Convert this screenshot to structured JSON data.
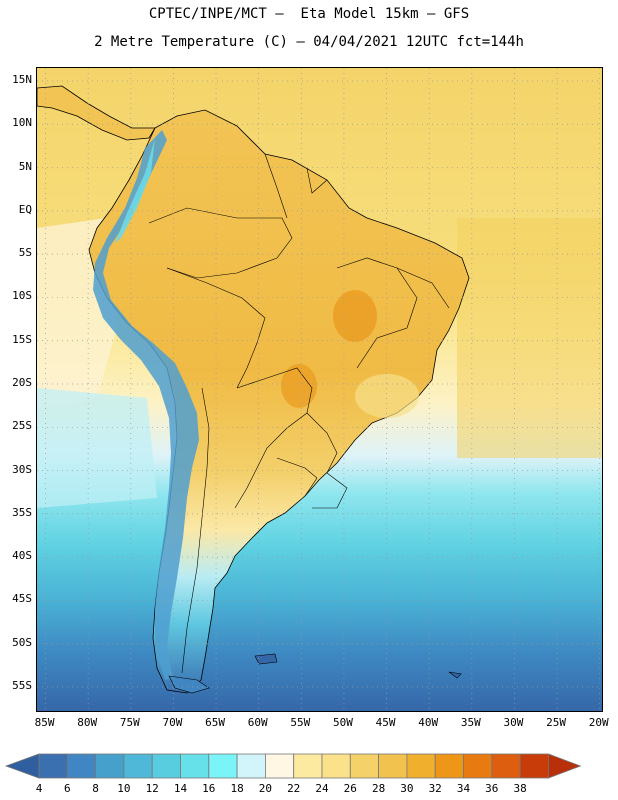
{
  "title": {
    "line1": "CPTEC/INPE/MCT –  Eta Model 15km – GFS",
    "line2": "2 Metre Temperature (C) – 04/04/2021 12UTC fct=144h"
  },
  "map": {
    "lat_labels": [
      "15N",
      "10N",
      "5N",
      "EQ",
      "5S",
      "10S",
      "15S",
      "20S",
      "25S",
      "30S",
      "35S",
      "40S",
      "45S",
      "50S",
      "55S"
    ],
    "lon_labels": [
      "85W",
      "80W",
      "75W",
      "70W",
      "65W",
      "60W",
      "55W",
      "50W",
      "45W",
      "40W",
      "35W",
      "30W",
      "25W",
      "20W"
    ],
    "lat_range": [
      -58,
      16.5
    ],
    "lon_range": [
      -86,
      -19.5
    ]
  },
  "colorbar": {
    "labels": [
      "4",
      "6",
      "8",
      "10",
      "12",
      "14",
      "16",
      "18",
      "20",
      "22",
      "24",
      "26",
      "28",
      "30",
      "32",
      "34",
      "36",
      "38"
    ],
    "colors": [
      "#3a6fb0",
      "#3f86c2",
      "#46a0cc",
      "#4fb8d8",
      "#58cde0",
      "#66e1ea",
      "#7af4f6",
      "#d2f4fb",
      "#fff6e4",
      "#fbeaa0",
      "#fbe18a",
      "#f5d16a",
      "#f1c24d",
      "#f0b02e",
      "#ee9618",
      "#e77b12",
      "#dd5e0e",
      "#c83c0a"
    ],
    "left_arrow_color": "#2f5f9e",
    "right_arrow_color": "#b8300a"
  }
}
